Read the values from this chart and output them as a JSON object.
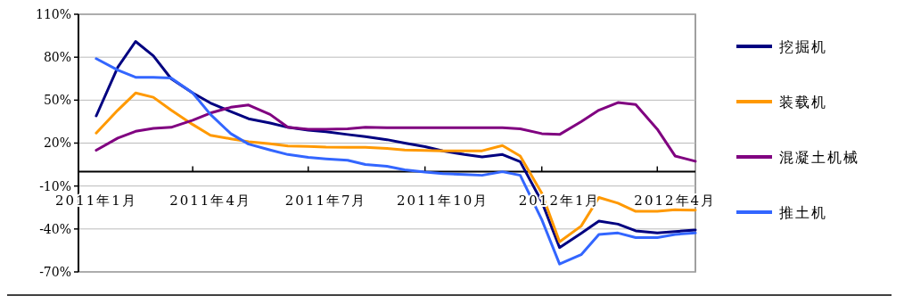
{
  "chart_data": {
    "type": "line",
    "legend": "right",
    "grid": "y",
    "line_style": "solid",
    "marker": "none",
    "x": [
      "2011-01-15",
      "2011-02-01",
      "2011-02-15",
      "2011-03-01",
      "2011-03-15",
      "2011-04-01",
      "2011-04-15",
      "2011-05-01",
      "2011-05-15",
      "2011-06-01",
      "2011-06-15",
      "2011-07-01",
      "2011-07-15",
      "2011-08-01",
      "2011-08-15",
      "2011-09-01",
      "2011-09-15",
      "2011-10-01",
      "2011-10-15",
      "2011-11-01",
      "2011-11-15",
      "2011-12-01",
      "2011-12-15",
      "2012-01-01",
      "2012-01-15",
      "2012-02-01",
      "2012-02-15",
      "2012-03-01",
      "2012-03-15",
      "2012-04-01",
      "2012-04-15",
      "2012-05-01"
    ],
    "xlim": [
      "2011-01-01",
      "2012-05-01"
    ],
    "xticks": [
      {
        "value": "2011-01-15",
        "label": "2011年1月"
      },
      {
        "value": "2011-04-01",
        "label": null
      },
      {
        "value": "2011-04-15",
        "label": "2011年4月"
      },
      {
        "value": "2011-07-01",
        "label": null
      },
      {
        "value": "2011-07-15",
        "label": "2011年7月"
      },
      {
        "value": "2011-10-01",
        "label": null
      },
      {
        "value": "2011-10-15",
        "label": "2011年10月"
      },
      {
        "value": "2012-01-01",
        "label": null
      },
      {
        "value": "2012-01-15",
        "label": "2012年1月"
      },
      {
        "value": "2012-04-01",
        "label": null
      },
      {
        "value": "2012-04-15",
        "label": "2012年4月"
      }
    ],
    "ylim": [
      -70,
      110
    ],
    "yticks": [
      {
        "value": -70,
        "label": "-70%"
      },
      {
        "value": -40,
        "label": "-40%"
      },
      {
        "value": -10,
        "label": "-10%"
      },
      {
        "value": 20,
        "label": "20%"
      },
      {
        "value": 50,
        "label": "50%"
      },
      {
        "value": 80,
        "label": "80%"
      },
      {
        "value": 110,
        "label": "110%"
      }
    ],
    "series": [
      {
        "name": "挖掘机",
        "color": "#000080",
        "values": [
          39,
          73,
          91,
          81,
          65,
          55,
          48,
          42,
          37,
          34,
          31,
          29,
          28,
          26,
          24.5,
          22.4,
          20,
          17.5,
          14.6,
          12,
          10.4,
          12,
          7,
          -21,
          -53,
          -43,
          -34.5,
          -36.6,
          -41.3,
          -42.8,
          -41.8,
          -40.7
        ]
      },
      {
        "name": "装载机",
        "color": "#ff9900",
        "values": [
          27,
          43,
          55,
          52,
          43,
          33,
          25.5,
          23,
          21,
          19.5,
          18,
          17.7,
          17.2,
          17,
          17,
          16.2,
          15.2,
          14.8,
          14.6,
          14.6,
          14.6,
          18.3,
          11,
          -15,
          -49,
          -38,
          -18,
          -22,
          -27.7,
          -27.7,
          -26.6,
          -26.8
        ]
      },
      {
        "name": "混凝土机械",
        "color": "#800080",
        "values": [
          15,
          23.5,
          28.2,
          30.3,
          31,
          36,
          41,
          45,
          46.6,
          40,
          31,
          29.7,
          29.7,
          30,
          31,
          30.7,
          30.7,
          30.7,
          30.7,
          30.7,
          30.7,
          30.7,
          30,
          26.6,
          26,
          34.9,
          43,
          48.3,
          46.9,
          29.7,
          11,
          7.3
        ]
      },
      {
        "name": "推土机",
        "color": "#3366ff",
        "values": [
          79,
          71,
          66,
          66,
          65.5,
          55,
          40,
          26.6,
          19.3,
          15.2,
          12,
          10,
          9,
          8,
          5,
          3.8,
          1.3,
          -0.3,
          -1.4,
          -1.9,
          -2.5,
          0,
          -2.5,
          -33.5,
          -64.5,
          -58,
          -43.8,
          -42.8,
          -46,
          -46,
          -43.8,
          -42.8
        ]
      }
    ]
  }
}
